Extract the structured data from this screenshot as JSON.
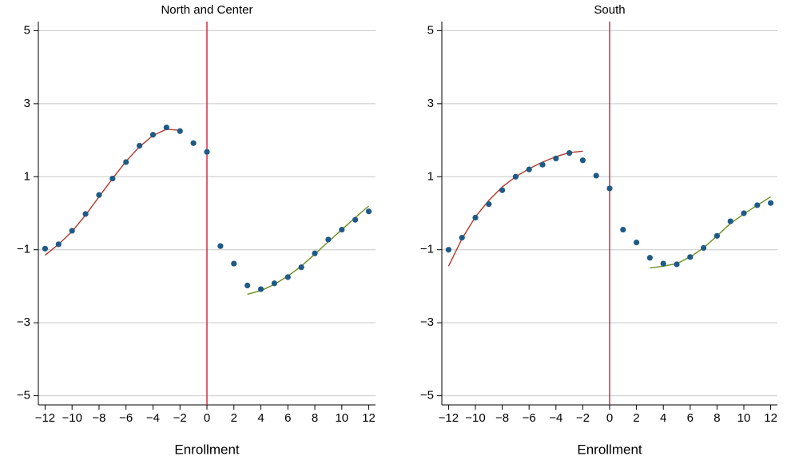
{
  "chart_data": [
    {
      "type": "scatter",
      "title": "North and Center",
      "x_label": "Enrollment",
      "x": [
        -12,
        -11,
        -10,
        -9,
        -8,
        -7,
        -6,
        -5,
        -4,
        -3,
        -2,
        -1,
        0,
        1,
        2,
        3,
        4,
        5,
        6,
        7,
        8,
        9,
        10,
        11,
        12
      ],
      "values": [
        -0.97,
        -0.85,
        -0.48,
        -0.02,
        0.5,
        0.95,
        1.4,
        1.85,
        2.15,
        2.35,
        2.25,
        1.92,
        1.68,
        -0.9,
        -1.38,
        -1.98,
        -2.08,
        -1.92,
        -1.75,
        -1.48,
        -1.1,
        -0.72,
        -0.45,
        -0.18,
        0.05
      ],
      "color": "#1f5a85",
      "fits": [
        {
          "color": "#b03a2e",
          "x": [
            -12,
            -11,
            -10,
            -9,
            -8,
            -7,
            -6,
            -5,
            -4,
            -3,
            -2
          ],
          "values": [
            -1.15,
            -0.85,
            -0.5,
            -0.05,
            0.45,
            0.95,
            1.42,
            1.82,
            2.13,
            2.3,
            2.27
          ]
        },
        {
          "color": "#6b8e23",
          "x": [
            3,
            4,
            5,
            6,
            7,
            8,
            9,
            10,
            11,
            12
          ],
          "values": [
            -2.22,
            -2.12,
            -1.95,
            -1.72,
            -1.45,
            -1.12,
            -0.78,
            -0.45,
            -0.12,
            0.2
          ]
        }
      ],
      "vline": 0,
      "vline_color": "#c8102e",
      "xlim": [
        -12.5,
        12.5
      ],
      "ylim": [
        -5.25,
        5.25
      ],
      "xticks": [
        {
          "value": -12,
          "label": "−12"
        },
        {
          "value": -10,
          "label": "−10"
        },
        {
          "value": -8,
          "label": "−8"
        },
        {
          "value": -6,
          "label": "−6"
        },
        {
          "value": -4,
          "label": "−4"
        },
        {
          "value": -2,
          "label": "−2"
        },
        0,
        2,
        4,
        6,
        8,
        10,
        12
      ],
      "yticks": [
        {
          "value": -5,
          "label": "−5"
        },
        {
          "value": -3,
          "label": "−3"
        },
        {
          "value": -1,
          "label": "−1"
        },
        1,
        3,
        5
      ],
      "grid": true
    },
    {
      "type": "scatter",
      "title": "South",
      "x_label": "Enrollment",
      "x": [
        -12,
        -11,
        -10,
        -9,
        -8,
        -7,
        -6,
        -5,
        -4,
        -3,
        -2,
        -1,
        0,
        1,
        2,
        3,
        4,
        5,
        6,
        7,
        8,
        9,
        10,
        11,
        12
      ],
      "values": [
        -1.0,
        -0.67,
        -0.12,
        0.25,
        0.63,
        1.0,
        1.2,
        1.33,
        1.5,
        1.65,
        1.45,
        1.03,
        0.68,
        -0.45,
        -0.8,
        -1.22,
        -1.38,
        -1.4,
        -1.2,
        -0.95,
        -0.62,
        -0.22,
        0.0,
        0.22,
        0.28
      ],
      "color": "#1f5a85",
      "fits": [
        {
          "color": "#b03a2e",
          "x": [
            -12,
            -11,
            -10,
            -9,
            -8,
            -7,
            -6,
            -5,
            -4,
            -3,
            -2
          ],
          "values": [
            -1.45,
            -0.7,
            -0.1,
            0.35,
            0.72,
            1.0,
            1.22,
            1.4,
            1.55,
            1.66,
            1.7
          ]
        },
        {
          "color": "#6b8e23",
          "x": [
            3,
            4,
            5,
            6,
            7,
            8,
            9,
            10,
            11,
            12
          ],
          "values": [
            -1.5,
            -1.45,
            -1.38,
            -1.2,
            -0.95,
            -0.62,
            -0.28,
            -0.02,
            0.22,
            0.45
          ]
        }
      ],
      "vline": 0,
      "vline_color": "#c8102e",
      "xlim": [
        -12.5,
        12.5
      ],
      "ylim": [
        -5.25,
        5.25
      ],
      "xticks": [
        {
          "value": -12,
          "label": "−12"
        },
        {
          "value": -10,
          "label": "−10"
        },
        {
          "value": -8,
          "label": "−8"
        },
        {
          "value": -6,
          "label": "−6"
        },
        {
          "value": -4,
          "label": "−4"
        },
        {
          "value": -2,
          "label": "−2"
        },
        0,
        2,
        4,
        6,
        8,
        10,
        12
      ],
      "yticks": [
        {
          "value": -5,
          "label": "−5"
        },
        {
          "value": -3,
          "label": "−3"
        },
        {
          "value": -1,
          "label": "−1"
        },
        1,
        3,
        5
      ],
      "grid": true
    }
  ]
}
